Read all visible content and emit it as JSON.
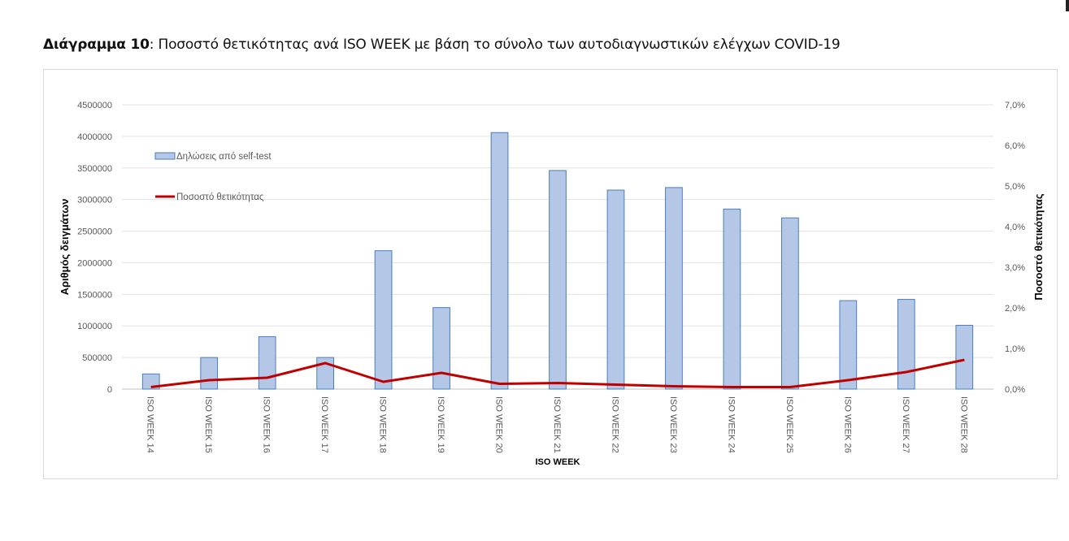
{
  "caption": {
    "prefix": "Διάγραμμα 10",
    "text": ": Ποσοστό θετικότητας ανά ISO WEEK με βάση το σύνολο των αυτοδιαγνωστικών ελέγχων COVID-19"
  },
  "chart_data": {
    "type": "bar",
    "title": "",
    "xlabel": "ISO WEEK",
    "ylabel": "Αριθμός δειγμάτων",
    "y2label": "Ποσοστό θετικότητας",
    "categories": [
      "ISO WEEK 14",
      "ISO WEEK 15",
      "ISO WEEK 16",
      "ISO WEEK 17",
      "ISO WEEK 18",
      "ISO WEEK 19",
      "ISO WEEK 20",
      "ISO WEEK 21",
      "ISO WEEK 22",
      "ISO WEEK 23",
      "ISO WEEK 24",
      "ISO WEEK 25",
      "ISO WEEK 26",
      "ISO WEEK 27",
      "ISO WEEK 28"
    ],
    "ylim": [
      0,
      4500000
    ],
    "yticks": [
      "0",
      "500000",
      "1000000",
      "1500000",
      "2000000",
      "2500000",
      "3000000",
      "3500000",
      "4000000",
      "4500000"
    ],
    "y2lim": [
      0,
      7.0
    ],
    "y2ticks": [
      "0,0%",
      "1,0%",
      "2,0%",
      "3,0%",
      "4,0%",
      "5,0%",
      "6,0%",
      "7,0%"
    ],
    "grid": true,
    "legend_position": "top-left",
    "series": [
      {
        "name": "Δηλώσεις από self-test",
        "type": "bar",
        "axis": "left",
        "color": "#b4c7e7",
        "edge_color": "#4a7ebb",
        "values": [
          240000,
          500000,
          830000,
          500000,
          2190000,
          1290000,
          4060000,
          3460000,
          3150000,
          3190000,
          2850000,
          2710000,
          1400000,
          1420000,
          1010000
        ]
      },
      {
        "name": "Ποσοστό θετικότητας",
        "type": "line",
        "axis": "right",
        "unit": "%",
        "color": "#c00000",
        "values": [
          0.05,
          0.22,
          0.28,
          0.64,
          0.18,
          0.4,
          0.13,
          0.15,
          0.11,
          0.07,
          0.05,
          0.05,
          0.22,
          0.42,
          0.72
        ]
      }
    ]
  }
}
